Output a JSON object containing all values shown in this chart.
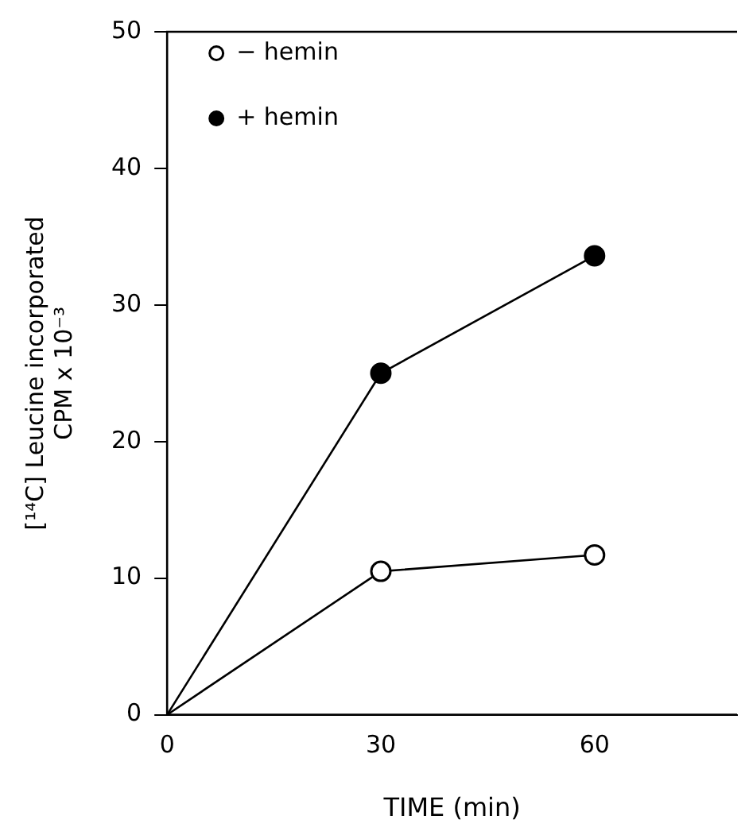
{
  "chart_data": {
    "type": "line",
    "xlabel": "TIME (min)",
    "ylabel": "[¹⁴C] Leucine incorporated\nCPM x 10⁻³",
    "x": [
      0,
      30,
      60
    ],
    "series": [
      {
        "name": "− hemin",
        "color": "#000000",
        "values": [
          0,
          10.5,
          11.7
        ]
      },
      {
        "name": "+ hemin",
        "color": "#000000",
        "values": [
          0,
          25,
          33.6
        ]
      }
    ],
    "xlim": [
      0,
      80
    ],
    "xticks": [
      0,
      30,
      60
    ],
    "ylim": [
      0,
      50
    ],
    "yticks": [
      0,
      10,
      20,
      30,
      40,
      50
    ],
    "grid": false,
    "legend": "top left",
    "marker": "circle",
    "line_style": "solid"
  }
}
